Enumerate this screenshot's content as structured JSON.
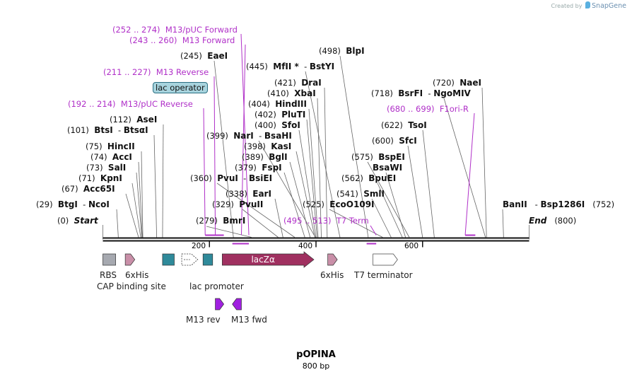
{
  "brand": {
    "created_by": "Created by",
    "name": "SnapGene"
  },
  "plasmid": {
    "name": "pOPINA",
    "size_label": "800 bp",
    "length": 800
  },
  "ends": {
    "start_pos": "(0)",
    "start_label": "Start",
    "end_label": "End",
    "end_pos": "(800)",
    "start_bp": 0,
    "end_bp": 800
  },
  "ruler_ticks": [
    {
      "bp": 200,
      "label": "200"
    },
    {
      "bp": 400,
      "label": "400"
    },
    {
      "bp": 600,
      "label": "600"
    }
  ],
  "sites": [
    {
      "pos": "(29)",
      "name": "BtgI",
      "name2": "NcoI",
      "bp": 29
    },
    {
      "pos": "(67)",
      "name": "Acc65I",
      "bp": 67
    },
    {
      "pos": "(71)",
      "name": "KpnI",
      "bp": 71
    },
    {
      "pos": "(73)",
      "name": "SalI",
      "bp": 73
    },
    {
      "pos": "(74)",
      "name": "AccI",
      "bp": 74
    },
    {
      "pos": "(75)",
      "name": "HincII",
      "bp": 75
    },
    {
      "pos": "(101)",
      "name": "BtsI",
      "name2": "BtsαI",
      "bp": 101
    },
    {
      "pos": "(112)",
      "name": "AseI",
      "bp": 112
    },
    {
      "pos": "(245)",
      "name": "EaeI",
      "bp": 245
    },
    {
      "pos": "(279)",
      "name": "BmrI",
      "bp": 279
    },
    {
      "pos": "(329)",
      "name": "PvuII",
      "bp": 329
    },
    {
      "pos": "(338)",
      "name": "EarI",
      "bp": 338
    },
    {
      "pos": "(360)",
      "name": "PvuI",
      "name2": "BsiEI",
      "bp": 360
    },
    {
      "pos": "(379)",
      "name": "FspI",
      "bp": 379
    },
    {
      "pos": "(389)",
      "name": "BglI",
      "bp": 389
    },
    {
      "pos": "(398)",
      "name": "KasI",
      "bp": 398
    },
    {
      "pos": "(399)",
      "name": "NarI",
      "name2": "BsaHI",
      "bp": 399
    },
    {
      "pos": "(400)",
      "name": "SfoI",
      "bp": 400
    },
    {
      "pos": "(402)",
      "name": "PluTI",
      "bp": 402
    },
    {
      "pos": "(404)",
      "name": "HindIII",
      "bp": 404
    },
    {
      "pos": "(410)",
      "name": "XbaI",
      "bp": 410
    },
    {
      "pos": "(421)",
      "name": "DraI",
      "bp": 421
    },
    {
      "pos": "(445)",
      "name": "MfII *",
      "name2": "BstYI",
      "bp": 445
    },
    {
      "pos": "(498)",
      "name": "BlpI",
      "bp": 498
    },
    {
      "pos": "(525)",
      "name": "EcoO109I",
      "bp": 525
    },
    {
      "pos": "(541)",
      "name": "SmlI",
      "bp": 541
    },
    {
      "pos": "(562)",
      "name": "BpuEI",
      "bp": 562
    },
    {
      "pos": "",
      "name": "BsaWI",
      "bp": 568
    },
    {
      "pos": "(575)",
      "name": "BspEI",
      "bp": 575
    },
    {
      "pos": "(600)",
      "name": "SfcI",
      "bp": 600
    },
    {
      "pos": "(622)",
      "name": "TsoI",
      "bp": 622
    },
    {
      "pos": "(718)",
      "name": "BsrFI",
      "name2": "NgoMIV",
      "bp": 718
    },
    {
      "pos": "(720)",
      "name": "NaeI",
      "bp": 720
    },
    {
      "pos": "",
      "name": "BanII",
      "name2": "Bsp1286I",
      "pos2": "(752)",
      "bp": 752
    }
  ],
  "primer_labels": [
    {
      "pos": "(252 .. 274)",
      "name": "M13/pUC Forward",
      "start": 252,
      "end": 274,
      "dir": "rev"
    },
    {
      "pos": "(243 .. 260)",
      "name": "M13 Forward",
      "start": 243,
      "end": 260,
      "dir": "rev"
    },
    {
      "pos": "(211 .. 227)",
      "name": "M13 Reverse",
      "start": 211,
      "end": 227,
      "dir": "fwd"
    },
    {
      "pos": "(192 .. 214)",
      "name": "M13/pUC Reverse",
      "start": 192,
      "end": 214,
      "dir": "fwd"
    },
    {
      "pos": "(680 .. 699)",
      "name": "F1ori-R",
      "start": 680,
      "end": 699,
      "dir": "fwd"
    },
    {
      "pos": "(495 .. 513)",
      "name": "T7 Term",
      "start": 495,
      "end": 513,
      "dir": "rev"
    }
  ],
  "lac_operator_label": "lac operator",
  "features": [
    {
      "name": "RBS",
      "start": 0,
      "end": 24,
      "color": "#a6a9b0",
      "shape": "box",
      "row": 1
    },
    {
      "name": "6xHis",
      "start": 42,
      "end": 60,
      "color": "#c98fa8",
      "shape": "arrow",
      "row": 1
    },
    {
      "name": "CAP binding site",
      "start": 112,
      "end": 134,
      "color": "#2f8a9a",
      "shape": "box",
      "row": 1
    },
    {
      "name": "lac promoter",
      "start": 148,
      "end": 178,
      "color": "#ffffff",
      "shape": "promoter",
      "row": 1
    },
    {
      "name": "lac operator",
      "start": 188,
      "end": 206,
      "color": "#2f8a9a",
      "shape": "box",
      "row": 1
    },
    {
      "name": "lacZα",
      "start": 224,
      "end": 396,
      "color": "#a03060",
      "shape": "arrow",
      "row": 1
    },
    {
      "name": "6xHis",
      "start": 422,
      "end": 440,
      "color": "#c98fa8",
      "shape": "arrow",
      "row": 1
    },
    {
      "name": "T7 terminator",
      "start": 507,
      "end": 553,
      "color": "#ffffff",
      "shape": "arrow",
      "row": 1
    },
    {
      "name": "M13 rev",
      "start": 211,
      "end": 227,
      "color": "#a020e0",
      "shape": "arrow",
      "row": 2
    },
    {
      "name": "M13 fwd",
      "start": 243,
      "end": 260,
      "color": "#a020e0",
      "shape": "revarrow",
      "row": 2
    }
  ],
  "feature_labels": {
    "rbs": "RBS",
    "his_a": "6xHis",
    "cap": "CAP binding site",
    "lacpro": "lac promoter",
    "lacz": "lacZα",
    "his_b": "6xHis",
    "t7term": "T7 terminator",
    "m13rev": "M13 rev",
    "m13fwd": "M13 fwd"
  },
  "colors": {
    "enzyme_text": "#111111",
    "primer": "#b030c8",
    "backbone": "#111111",
    "connector": "#666666"
  }
}
